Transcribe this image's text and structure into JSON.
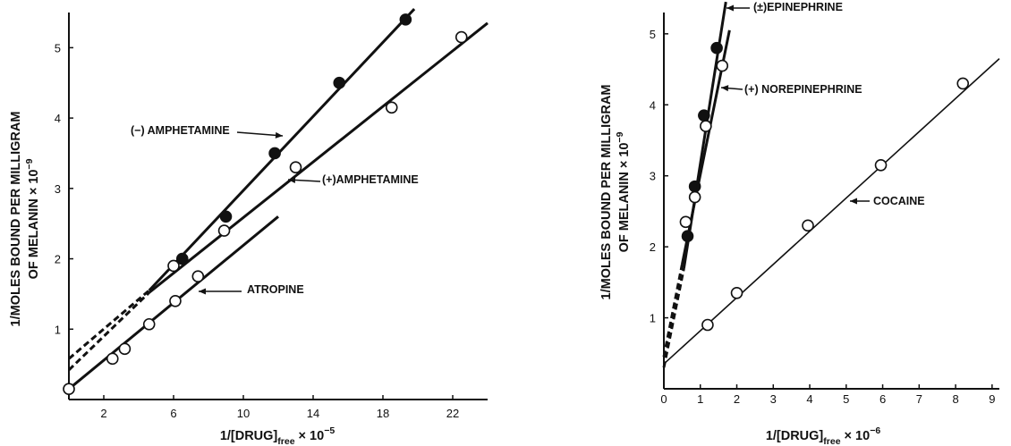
{
  "chart_data": [
    {
      "type": "scatter",
      "xlabel": {
        "main": "1/[DRUG]",
        "sub": "free",
        "suffix": " × 10",
        "exp": "−5"
      },
      "ylabel": {
        "line1": "1/MOLES BOUND PER MILLIGRAM",
        "line2": "OF MELANIN × 10",
        "exp": "−9"
      },
      "xlim": [
        0,
        24
      ],
      "ylim": [
        0,
        5.5
      ],
      "x_ticks": [
        2,
        6,
        10,
        14,
        18,
        22
      ],
      "y_ticks": [
        1,
        2,
        3,
        4,
        5
      ],
      "grid": false,
      "series": [
        {
          "name": "(−) AMPHETAMINE",
          "marker": "filled",
          "points": [
            [
              6.5,
              2.0
            ],
            [
              9.0,
              2.6
            ],
            [
              11.8,
              3.5
            ],
            [
              15.5,
              4.5
            ],
            [
              19.3,
              5.4
            ]
          ],
          "fit_dashed": [
            [
              0,
              0.58
            ],
            [
              4.6,
              1.55
            ]
          ],
          "fit_solid": [
            [
              4.6,
              1.55
            ],
            [
              19.8,
              5.55
            ]
          ]
        },
        {
          "name": "(+)AMPHETAMINE",
          "marker": "open",
          "points": [
            [
              6.0,
              1.9
            ],
            [
              8.9,
              2.4
            ],
            [
              13.0,
              3.3
            ],
            [
              18.5,
              4.15
            ],
            [
              22.5,
              5.15
            ]
          ],
          "fit_dashed": [
            [
              0,
              0.42
            ],
            [
              4.6,
              1.52
            ]
          ],
          "fit_solid": [
            [
              4.6,
              1.52
            ],
            [
              24.0,
              5.35
            ]
          ]
        },
        {
          "name": "ATROPINE",
          "marker": "open",
          "points": [
            [
              0,
              0.15
            ],
            [
              2.5,
              0.58
            ],
            [
              3.2,
              0.72
            ],
            [
              4.6,
              1.07
            ],
            [
              6.1,
              1.4
            ],
            [
              7.4,
              1.75
            ]
          ],
          "fit_solid": [
            [
              0,
              0.15
            ],
            [
              12.0,
              2.6
            ]
          ]
        }
      ]
    },
    {
      "type": "scatter",
      "xlabel": {
        "main": "1/[DRUG]",
        "sub": "free",
        "suffix": " × 10",
        "exp": "−6"
      },
      "ylabel": {
        "line1": "1/MOLES BOUND PER MILLIGRAM",
        "line2": "OF MELANIN × 10",
        "exp": "−9"
      },
      "xlim": [
        0,
        9.2
      ],
      "ylim": [
        0,
        5.3
      ],
      "x_ticks": [
        0,
        1,
        2,
        3,
        4,
        5,
        6,
        7,
        8,
        9
      ],
      "y_ticks": [
        1,
        2,
        3,
        4,
        5
      ],
      "grid": false,
      "series": [
        {
          "name": "(±)EPINEPHRINE",
          "marker": "filled",
          "points": [
            [
              0.65,
              2.15
            ],
            [
              0.85,
              2.85
            ],
            [
              1.1,
              3.85
            ],
            [
              1.45,
              4.8
            ]
          ],
          "fit_dashed": [
            [
              0,
              0.3
            ],
            [
              0.55,
              1.7
            ]
          ],
          "fit_solid": [
            [
              0.55,
              1.7
            ],
            [
              1.7,
              5.45
            ]
          ]
        },
        {
          "name": "(+) NOREPINEPHRINE",
          "marker": "open",
          "points": [
            [
              0.6,
              2.35
            ],
            [
              0.85,
              2.7
            ],
            [
              1.15,
              3.7
            ],
            [
              1.6,
              4.55
            ]
          ],
          "fit_dashed": [
            [
              0,
              0.45
            ],
            [
              0.5,
              1.75
            ]
          ],
          "fit_solid": [
            [
              0.5,
              1.75
            ],
            [
              1.8,
              5.05
            ]
          ]
        },
        {
          "name": "COCAINE",
          "marker": "open",
          "points": [
            [
              1.2,
              0.9
            ],
            [
              2.0,
              1.35
            ],
            [
              3.95,
              2.3
            ],
            [
              5.95,
              3.15
            ],
            [
              8.2,
              4.3
            ]
          ],
          "fit_solid": [
            [
              0,
              0.35
            ],
            [
              9.2,
              4.65
            ]
          ]
        }
      ]
    }
  ]
}
